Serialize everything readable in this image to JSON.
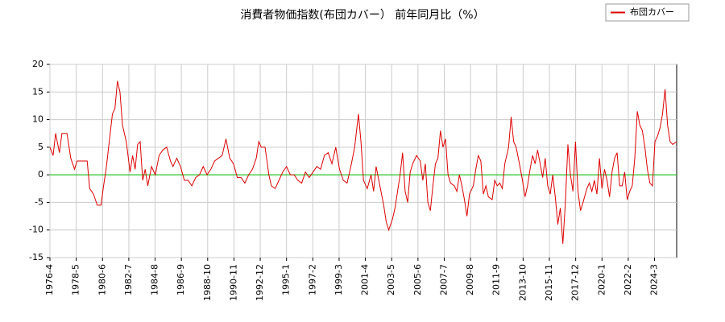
{
  "chart_data": {
    "type": "line",
    "title": "消費者物価指数(布団カバー） 前年同月比（%）",
    "legend": "upper right",
    "grid": true,
    "hline": 0,
    "hline_color": "#00c000",
    "xlim": [
      1976.25,
      2025.92
    ],
    "ylim": [
      -15,
      20
    ],
    "yticks": [
      -15,
      -10,
      -5,
      0,
      5,
      10,
      15,
      20
    ],
    "xticks": [
      {
        "value": 1976.25,
        "label": "1976-4"
      },
      {
        "value": 1978.3333,
        "label": "1978-5"
      },
      {
        "value": 1980.4167,
        "label": "1980-6"
      },
      {
        "value": 1982.5,
        "label": "1982-7"
      },
      {
        "value": 1984.5833,
        "label": "1984-8"
      },
      {
        "value": 1986.6667,
        "label": "1986-9"
      },
      {
        "value": 1988.75,
        "label": "1988-10"
      },
      {
        "value": 1990.8333,
        "label": "1990-11"
      },
      {
        "value": 1992.9167,
        "label": "1992-12"
      },
      {
        "value": 1995,
        "label": "1995-1"
      },
      {
        "value": 1997.0833,
        "label": "1997-2"
      },
      {
        "value": 1999.1667,
        "label": "1999-3"
      },
      {
        "value": 2001.25,
        "label": "2001-4"
      },
      {
        "value": 2003.3333,
        "label": "2003-5"
      },
      {
        "value": 2005.4167,
        "label": "2005-6"
      },
      {
        "value": 2007.5,
        "label": "2007-7"
      },
      {
        "value": 2009.5833,
        "label": "2009-8"
      },
      {
        "value": 2011.6667,
        "label": "2011-9"
      },
      {
        "value": 2013.75,
        "label": "2013-10"
      },
      {
        "value": 2015.8333,
        "label": "2015-11"
      },
      {
        "value": 2017.9167,
        "label": "2017-12"
      },
      {
        "value": 2020,
        "label": "2020-1"
      },
      {
        "value": 2022.0833,
        "label": "2022-2"
      },
      {
        "value": 2024.1667,
        "label": "2024-3"
      }
    ],
    "x": [
      1976.25,
      1976.5,
      1976.7,
      1977.0,
      1977.2,
      1977.6,
      1977.9,
      1978.2,
      1978.4,
      1978.8,
      1979.2,
      1979.4,
      1979.7,
      1980.0,
      1980.3,
      1980.5,
      1980.7,
      1981.0,
      1981.2,
      1981.4,
      1981.6,
      1981.8,
      1982.0,
      1982.3,
      1982.6,
      1982.8,
      1983.0,
      1983.2,
      1983.4,
      1983.6,
      1983.8,
      1984.0,
      1984.3,
      1984.6,
      1984.9,
      1985.2,
      1985.5,
      1985.8,
      1986.0,
      1986.3,
      1986.6,
      1986.9,
      1987.2,
      1987.5,
      1987.8,
      1988.1,
      1988.4,
      1988.7,
      1989.0,
      1989.3,
      1989.6,
      1989.9,
      1990.2,
      1990.5,
      1990.8,
      1991.1,
      1991.4,
      1991.7,
      1992.0,
      1992.3,
      1992.6,
      1992.8,
      1993.0,
      1993.3,
      1993.6,
      1993.8,
      1994.1,
      1994.4,
      1994.7,
      1995.0,
      1995.3,
      1995.6,
      1995.9,
      1996.2,
      1996.5,
      1996.8,
      1997.1,
      1997.4,
      1997.7,
      1998.0,
      1998.3,
      1998.6,
      1998.9,
      1999.2,
      1999.5,
      1999.8,
      2000.1,
      2000.4,
      2000.7,
      2000.9,
      2001.1,
      2001.4,
      2001.7,
      2001.9,
      2002.1,
      2002.4,
      2002.7,
      2002.9,
      2003.1,
      2003.4,
      2003.6,
      2003.8,
      2004.0,
      2004.2,
      2004.4,
      2004.6,
      2004.8,
      2005.0,
      2005.3,
      2005.6,
      2005.8,
      2006.0,
      2006.2,
      2006.4,
      2006.6,
      2006.8,
      2007.0,
      2007.2,
      2007.4,
      2007.6,
      2007.8,
      2008.0,
      2008.3,
      2008.5,
      2008.7,
      2008.9,
      2009.1,
      2009.3,
      2009.5,
      2009.8,
      2010.0,
      2010.2,
      2010.4,
      2010.6,
      2010.8,
      2011.0,
      2011.3,
      2011.5,
      2011.7,
      2011.9,
      2012.1,
      2012.3,
      2012.6,
      2012.8,
      2013.0,
      2013.2,
      2013.5,
      2013.7,
      2013.9,
      2014.1,
      2014.3,
      2014.5,
      2014.7,
      2014.9,
      2015.1,
      2015.3,
      2015.5,
      2015.7,
      2015.9,
      2016.1,
      2016.3,
      2016.5,
      2016.7,
      2016.9,
      2017.1,
      2017.3,
      2017.5,
      2017.7,
      2017.9,
      2018.1,
      2018.3,
      2018.5,
      2018.8,
      2019.0,
      2019.2,
      2019.4,
      2019.6,
      2019.8,
      2020.0,
      2020.2,
      2020.4,
      2020.6,
      2020.8,
      2021.0,
      2021.2,
      2021.4,
      2021.6,
      2021.8,
      2022.0,
      2022.2,
      2022.4,
      2022.6,
      2022.8,
      2023.0,
      2023.2,
      2023.4,
      2023.6,
      2023.8,
      2024.0,
      2024.2,
      2024.4,
      2024.6,
      2024.8,
      2025.0,
      2025.2,
      2025.4,
      2025.6,
      2025.92
    ],
    "series": [
      {
        "name": "布団カバー",
        "color": "#dd0000",
        "values": [
          5,
          3.5,
          7.5,
          4,
          7.5,
          7.5,
          3,
          1,
          2.5,
          2.5,
          2.5,
          -2.5,
          -3.5,
          -5.5,
          -5.5,
          -2,
          1,
          7,
          11,
          12,
          17,
          15,
          9,
          6,
          0.5,
          3.5,
          1,
          5.5,
          6,
          -1,
          1,
          -2,
          1.5,
          0,
          3.5,
          4.5,
          5,
          2.5,
          1.5,
          3,
          1.5,
          -1,
          -1,
          -2,
          -0.5,
          0,
          1.5,
          0,
          1,
          2.5,
          3,
          3.5,
          6.5,
          3,
          2,
          -0.5,
          -0.5,
          -1.5,
          0,
          1,
          3,
          6,
          5,
          5,
          0,
          -2,
          -2.5,
          -1,
          0.5,
          1.5,
          0,
          0,
          -1,
          -1.5,
          0.5,
          -0.5,
          0.5,
          1.5,
          1,
          3.5,
          4,
          2,
          5,
          1,
          -1,
          -1.5,
          1.5,
          5,
          11,
          6,
          -1,
          -2.5,
          0,
          -3,
          1.5,
          -2,
          -5.5,
          -8.5,
          -10,
          -8,
          -6,
          -3,
          0,
          4,
          -3,
          -5,
          0.5,
          2,
          3.5,
          2.5,
          -1,
          2,
          -5,
          -6.5,
          -2,
          2,
          3,
          8,
          5,
          6.5,
          0,
          -1.5,
          -2,
          -3,
          0,
          -2,
          -4.5,
          -7.5,
          -3.5,
          -2,
          1,
          3.5,
          2.5,
          -3.5,
          -2,
          -4,
          -4.5,
          -1,
          -2,
          -1.5,
          -2.5,
          2,
          5,
          10.5,
          6,
          5,
          1.5,
          -1,
          -4,
          -2,
          1,
          3.5,
          2,
          4.5,
          2,
          -0.5,
          3,
          -2,
          -3.5,
          0,
          -4,
          -9,
          -6,
          -12.5,
          -5,
          5.5,
          0,
          -3,
          6,
          -3,
          -6.5,
          -5,
          -2.5,
          -1.5,
          -3,
          -1,
          -3.5,
          3,
          -2.5,
          1,
          -1,
          -4,
          0.5,
          3,
          4,
          -2,
          -2,
          0.5,
          -4.5,
          -3,
          -2,
          3,
          11.5,
          9,
          8,
          5,
          1,
          -1.5,
          -2,
          6,
          7,
          8.5,
          11,
          15.5,
          9,
          6,
          5.5,
          6
        ]
      }
    ]
  }
}
